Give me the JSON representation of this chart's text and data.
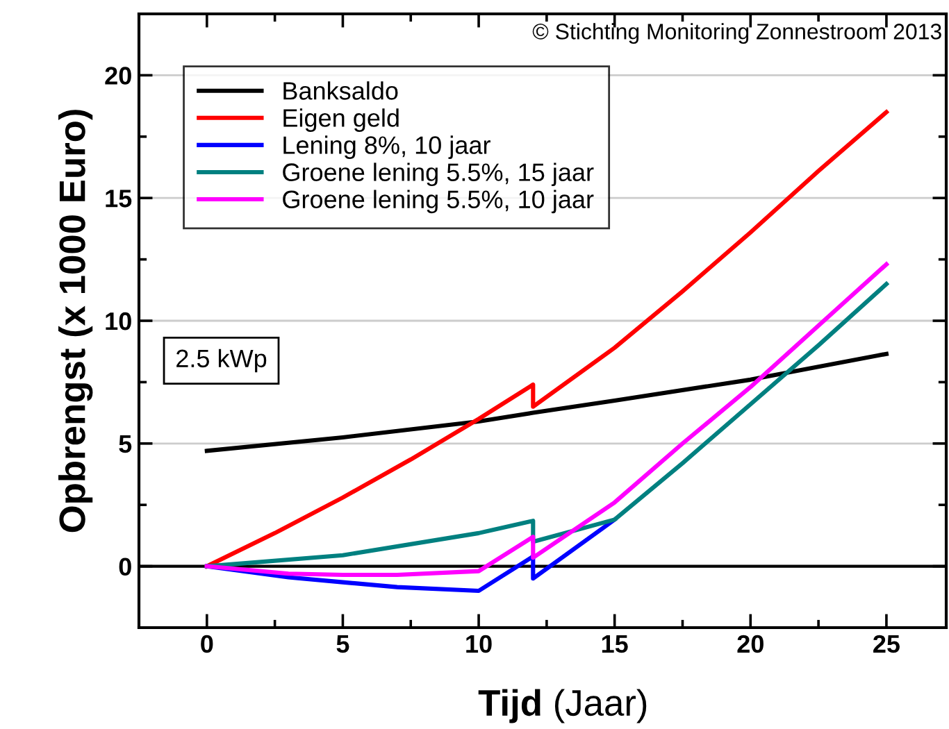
{
  "chart_data": {
    "type": "line",
    "xlabel": "Tijd (Jaar)",
    "ylabel": "Opbrengst (x 1000 Euro)",
    "xlim": [
      -2.5,
      27.2
    ],
    "xticks": [
      0,
      5,
      10,
      15,
      20,
      25
    ],
    "ylim": [
      -2.5,
      22.5
    ],
    "yticks": [
      0,
      5,
      10,
      15,
      20
    ],
    "grid": "y",
    "legend": "top left",
    "line_style": "solid",
    "marker": "none",
    "ref_lines": [
      {
        "axis": "y",
        "value": 0,
        "color": "#000000"
      }
    ],
    "annotations": [
      "© Stichting Monitoring Zonnestroom 2013",
      "2.5 kWp"
    ],
    "series": [
      {
        "name": "Banksaldo",
        "color": "#000000",
        "x": [
          0,
          5,
          10,
          12,
          15,
          20,
          25
        ],
        "values": [
          4.7,
          5.25,
          5.9,
          6.25,
          6.75,
          7.6,
          8.65
        ]
      },
      {
        "name": "Eigen geld",
        "color": "#ff0000",
        "x": [
          0,
          2.5,
          5,
          7.5,
          10,
          12,
          12,
          15,
          17.5,
          20,
          22.5,
          25
        ],
        "values": [
          0,
          1.35,
          2.8,
          4.35,
          6.0,
          7.4,
          6.5,
          8.9,
          11.2,
          13.6,
          16.1,
          18.5
        ]
      },
      {
        "name": "Lening 8%, 10 jaar",
        "color": "#0000ff",
        "x": [
          0,
          3,
          5,
          7,
          10,
          12,
          12,
          15
        ],
        "values": [
          0,
          -0.45,
          -0.65,
          -0.85,
          -1.0,
          0.4,
          -0.5,
          1.9
        ]
      },
      {
        "name": "Groene lening 5.5%, 15 jaar",
        "color": "#008080",
        "x": [
          0,
          5,
          10,
          12,
          12,
          15,
          17.5,
          20,
          22.5,
          25
        ],
        "values": [
          0,
          0.45,
          1.35,
          1.85,
          1.0,
          1.9,
          4.2,
          6.6,
          9.0,
          11.5
        ]
      },
      {
        "name": "Groene lening 5.5%, 10 jaar",
        "color": "#ff00ff",
        "x": [
          0,
          3,
          5,
          7,
          10,
          12,
          12,
          15,
          17.5,
          20,
          22.5,
          25
        ],
        "values": [
          0,
          -0.3,
          -0.35,
          -0.35,
          -0.2,
          1.2,
          0.35,
          2.6,
          5.0,
          7.3,
          9.8,
          12.3
        ]
      }
    ]
  }
}
